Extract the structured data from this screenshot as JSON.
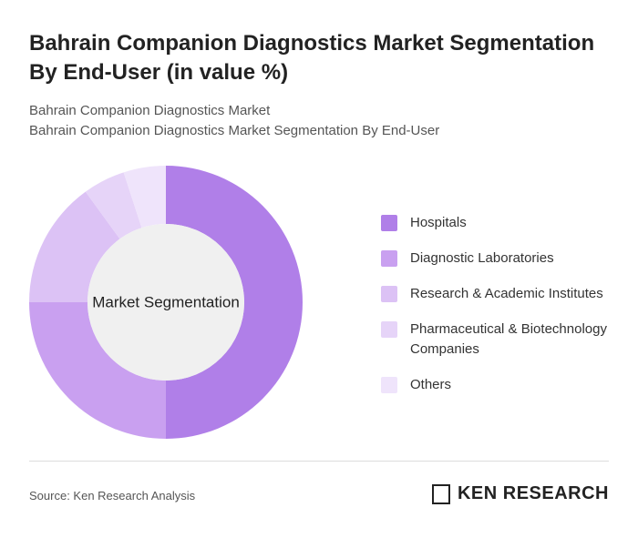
{
  "chart_data": {
    "type": "donut",
    "title": "Bahrain Companion Diagnostics Market Segmentation By End-User (in value %)",
    "subtitle": [
      "Bahrain Companion Diagnostics Market",
      "Bahrain Companion Diagnostics Market Segmentation By End-User"
    ],
    "center_label": "Market Segmentation",
    "categories": [
      "Hospitals",
      "Diagnostic Laboratories",
      "Research & Academic Institutes",
      "Pharmaceutical & Biotechnology Companies",
      "Others"
    ],
    "values": [
      50,
      25,
      15,
      5,
      5
    ],
    "colors": [
      "#b07fe8",
      "#c9a0f0",
      "#dcc2f5",
      "#e6d4f8",
      "#efe4fb"
    ],
    "legend": "right"
  },
  "footer": {
    "source": "Source: Ken Research Analysis",
    "logo": "KEN RESEARCH"
  }
}
